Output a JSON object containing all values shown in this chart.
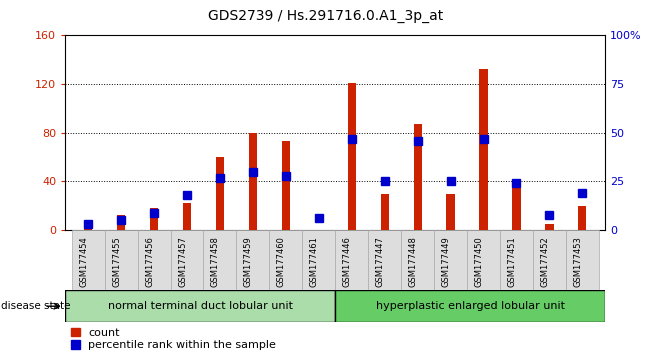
{
  "title": "GDS2739 / Hs.291716.0.A1_3p_at",
  "samples": [
    "GSM177454",
    "GSM177455",
    "GSM177456",
    "GSM177457",
    "GSM177458",
    "GSM177459",
    "GSM177460",
    "GSM177461",
    "GSM177446",
    "GSM177447",
    "GSM177448",
    "GSM177449",
    "GSM177450",
    "GSM177451",
    "GSM177452",
    "GSM177453"
  ],
  "count_values": [
    8,
    12,
    18,
    22,
    60,
    80,
    73,
    0,
    121,
    30,
    87,
    30,
    132,
    35,
    5,
    20
  ],
  "percentile_values": [
    3,
    5,
    9,
    18,
    27,
    30,
    28,
    6,
    47,
    25,
    46,
    25,
    47,
    24,
    8,
    19
  ],
  "count_color": "#cc2200",
  "percentile_color": "#0000cc",
  "ylim_left": [
    0,
    160
  ],
  "ylim_right": [
    0,
    100
  ],
  "yticks_left": [
    0,
    40,
    80,
    120,
    160
  ],
  "ytick_labels_left": [
    "0",
    "40",
    "80",
    "120",
    "160"
  ],
  "yticks_right": [
    0,
    25,
    50,
    75,
    100
  ],
  "ytick_labels_right": [
    "0",
    "25",
    "50",
    "75",
    "100%"
  ],
  "group1_label": "normal terminal duct lobular unit",
  "group2_label": "hyperplastic enlarged lobular unit",
  "group1_count": 8,
  "group2_count": 8,
  "disease_state_label": "disease state",
  "legend_count": "count",
  "legend_percentile": "percentile rank within the sample",
  "red_bar_width": 0.25,
  "background_color": "#ffffff",
  "plot_bg_color": "#ffffff",
  "group1_bg": "#aaddaa",
  "group2_bg": "#66cc66",
  "xticklabel_bg": "#dddddd",
  "marker_size": 6
}
